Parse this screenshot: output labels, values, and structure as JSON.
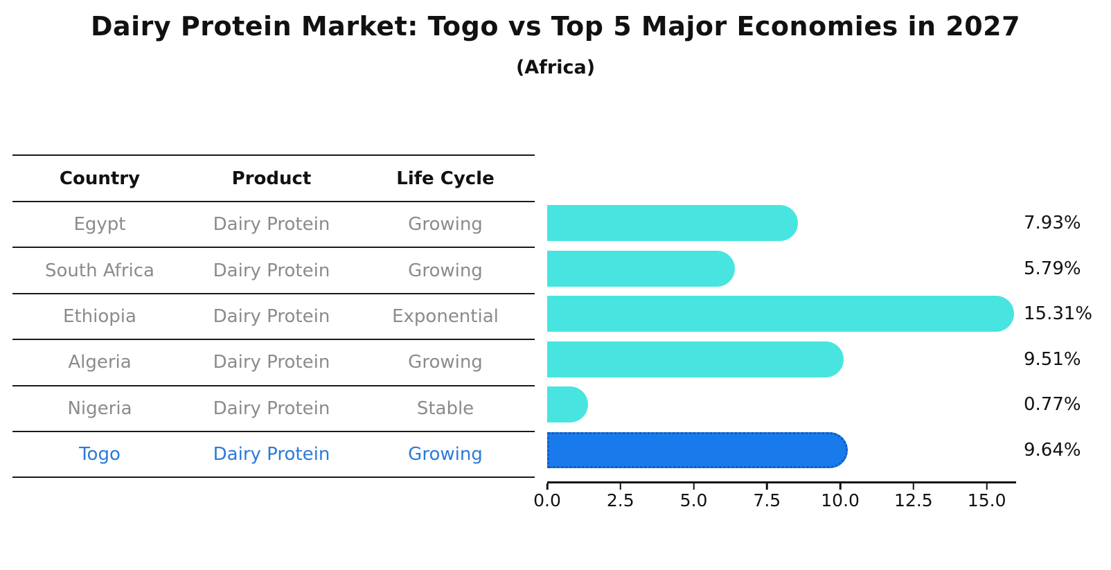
{
  "title": "Dairy Protein Market: Togo vs Top 5 Major Economies in 2027",
  "subtitle": "(Africa)",
  "table": {
    "headers": [
      "Country",
      "Product",
      "Life Cycle"
    ],
    "rows": [
      {
        "country": "Egypt",
        "product": "Dairy Protein",
        "life_cycle": "Growing",
        "highlight": false
      },
      {
        "country": "South Africa",
        "product": "Dairy Protein",
        "life_cycle": "Growing",
        "highlight": false
      },
      {
        "country": "Ethiopia",
        "product": "Dairy Protein",
        "life_cycle": "Exponential",
        "highlight": false
      },
      {
        "country": "Algeria",
        "product": "Dairy Protein",
        "life_cycle": "Growing",
        "highlight": false
      },
      {
        "country": "Nigeria",
        "product": "Dairy Protein",
        "life_cycle": "Stable",
        "highlight": false
      },
      {
        "country": "Togo",
        "product": "Dairy Protein",
        "life_cycle": "Growing",
        "highlight": true
      }
    ]
  },
  "chart_data": {
    "type": "bar",
    "orientation": "horizontal",
    "categories": [
      "Egypt",
      "South Africa",
      "Ethiopia",
      "Algeria",
      "Nigeria",
      "Togo"
    ],
    "values": [
      7.93,
      5.79,
      15.31,
      9.51,
      0.77,
      9.64
    ],
    "value_labels": [
      "7.93%",
      "5.79%",
      "15.31%",
      "9.51%",
      "0.77%",
      "9.64%"
    ],
    "highlight_index": 5,
    "xlim": [
      0,
      16
    ],
    "x_ticks": [
      "0.0",
      "2.5",
      "5.0",
      "7.5",
      "10.0",
      "12.5",
      "15.0"
    ],
    "grid": false,
    "legend": "none"
  },
  "colors": {
    "bar": "#48E5E0",
    "highlight_bar": "#197AEB",
    "highlight_bar_border": "#125ABE",
    "highlight_text": "#2A7BD8",
    "row_text": "#8B8B8B",
    "header_text": "#111111"
  }
}
